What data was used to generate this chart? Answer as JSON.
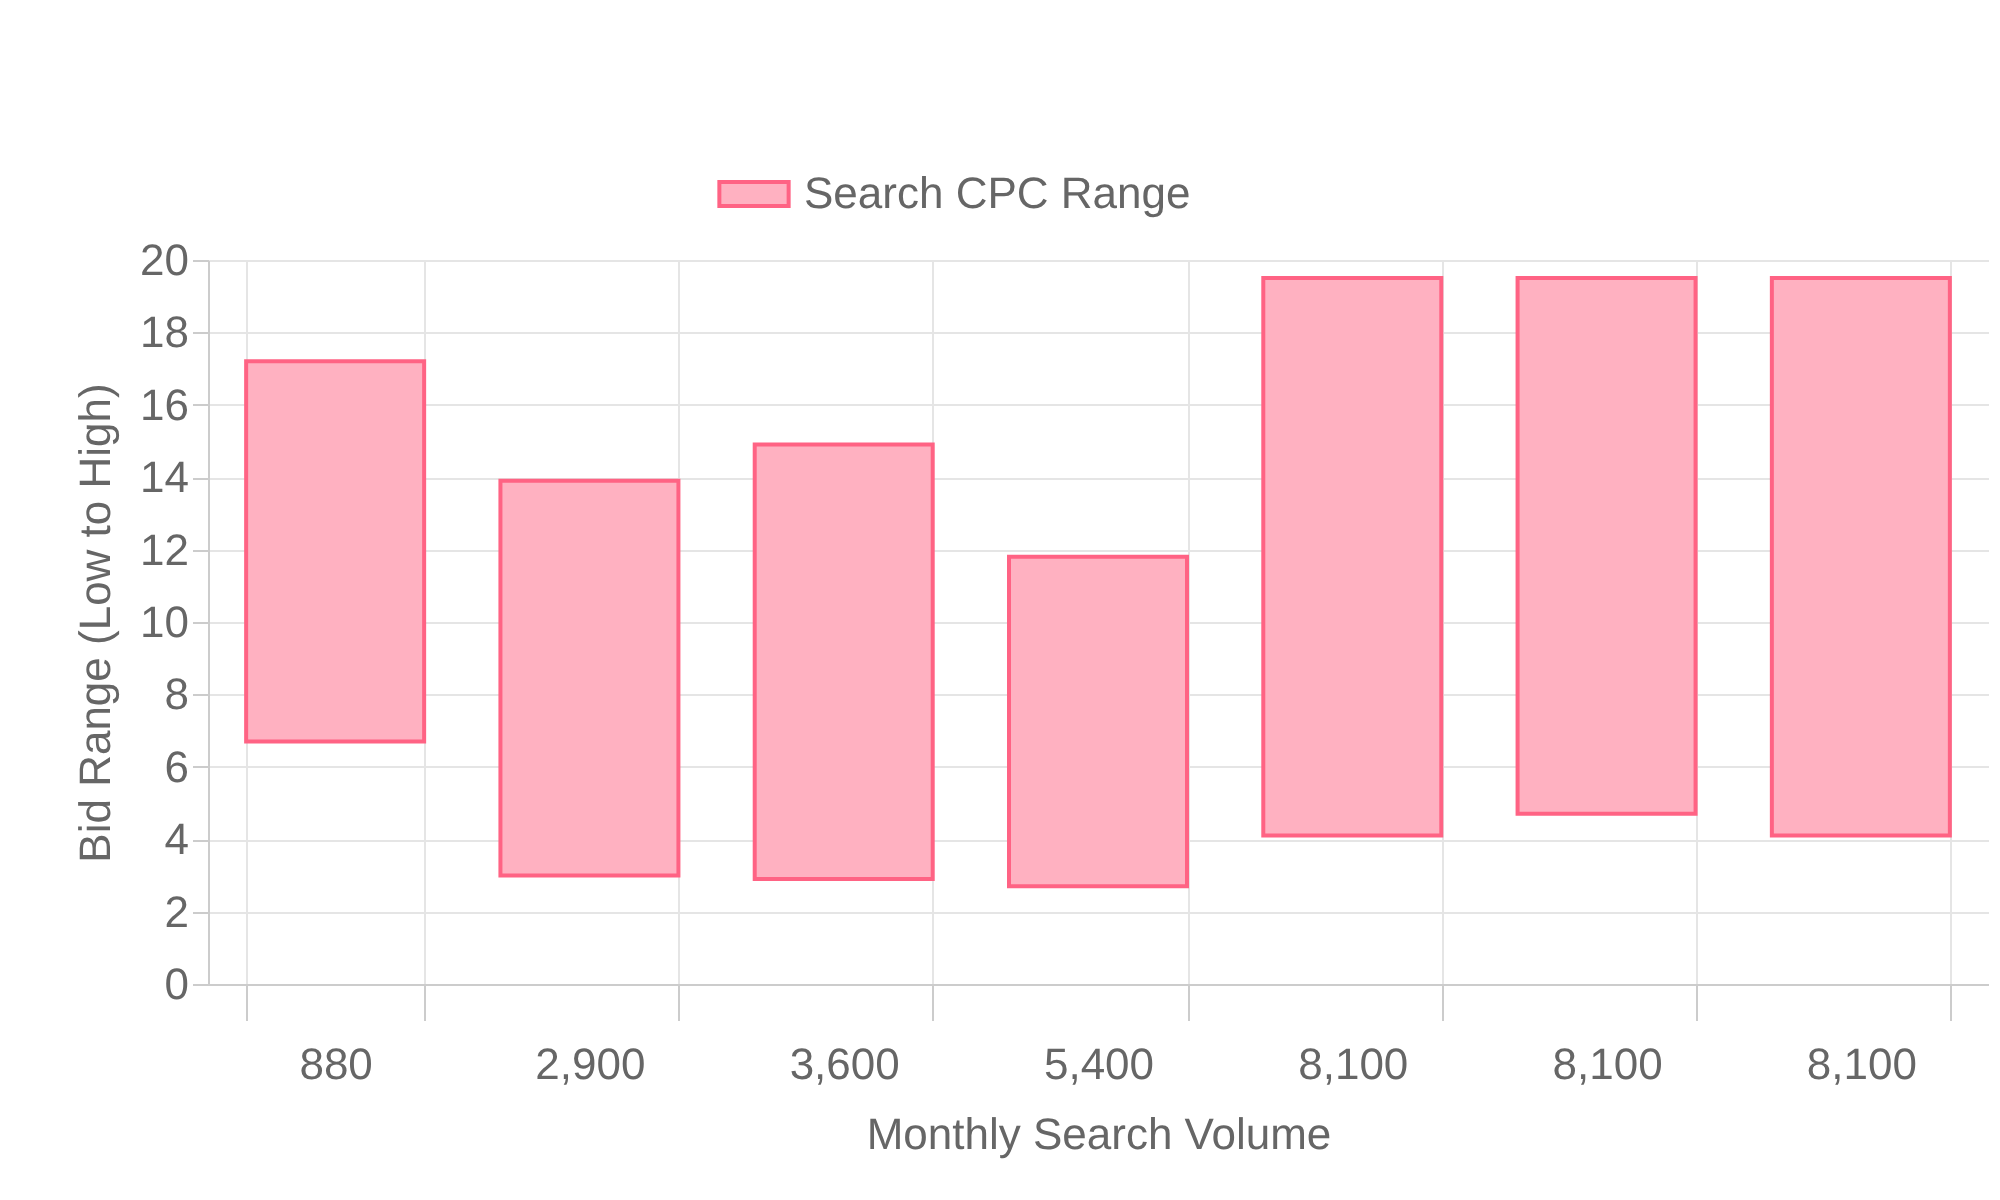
{
  "chart_data": {
    "type": "bar",
    "xlabel": "Monthly Search Volume",
    "ylabel": "Bid Range (Low to High)",
    "categories": [
      "880",
      "2,900",
      "3,600",
      "5,400",
      "8,100",
      "8,100",
      "8,100"
    ],
    "series": [
      {
        "name": "Search CPC Range",
        "color": "#ffb1c1",
        "values": [
          10.5,
          10.9,
          12.0,
          9.1,
          15.4,
          14.8,
          15.4
        ],
        "base": [
          6.7,
          3.0,
          2.9,
          2.7,
          4.1,
          4.7,
          4.1
        ]
      }
    ],
    "ylim": [
      0,
      20
    ],
    "yticks": [
      0,
      2,
      4,
      6,
      8,
      10,
      12,
      14,
      16,
      18,
      20
    ],
    "grid": true,
    "legend": "top"
  }
}
